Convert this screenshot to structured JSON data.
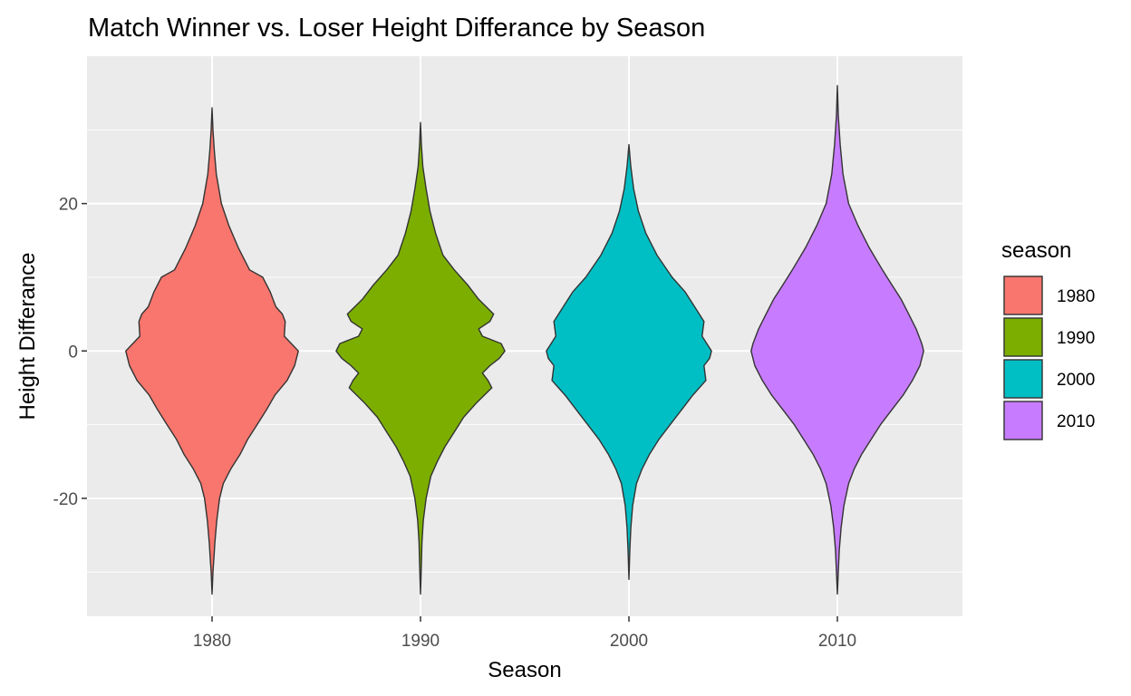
{
  "chart_data": {
    "type": "violin",
    "title": "Match Winner vs. Loser Height Differance by Season",
    "xlabel": "Season",
    "ylabel": "Height Differance",
    "categories": [
      "1980",
      "1990",
      "2000",
      "2010"
    ],
    "yticks": [
      "-20",
      "0",
      "20"
    ],
    "ylim": [
      -36,
      40
    ],
    "grid": true,
    "legend": {
      "title": "season",
      "position": "right",
      "entries": [
        "1980",
        "1990",
        "2000",
        "2010"
      ]
    },
    "colors": [
      "#F8766D",
      "#7CAE00",
      "#00BFC4",
      "#C77CFF"
    ],
    "series": [
      {
        "name": "1980",
        "min": -33,
        "max": 33,
        "profile": [
          [
            33,
            0.0
          ],
          [
            30,
            0.01
          ],
          [
            27,
            0.025
          ],
          [
            24,
            0.045
          ],
          [
            20,
            0.1
          ],
          [
            17,
            0.18
          ],
          [
            14,
            0.28
          ],
          [
            11,
            0.4
          ],
          [
            10,
            0.54
          ],
          [
            8,
            0.62
          ],
          [
            6,
            0.68
          ],
          [
            5,
            0.75
          ],
          [
            4,
            0.78
          ],
          [
            2,
            0.77
          ],
          [
            0,
            0.92
          ],
          [
            -2,
            0.88
          ],
          [
            -4,
            0.8
          ],
          [
            -6,
            0.67
          ],
          [
            -8,
            0.58
          ],
          [
            -10,
            0.48
          ],
          [
            -12,
            0.38
          ],
          [
            -14,
            0.3
          ],
          [
            -16,
            0.2
          ],
          [
            -18,
            0.12
          ],
          [
            -20,
            0.08
          ],
          [
            -23,
            0.05
          ],
          [
            -26,
            0.03
          ],
          [
            -28,
            0.02
          ],
          [
            -30,
            0.01
          ],
          [
            -33,
            0.0
          ]
        ]
      },
      {
        "name": "1990",
        "min": -33,
        "max": 31,
        "profile": [
          [
            31,
            0.0
          ],
          [
            28,
            0.01
          ],
          [
            25,
            0.025
          ],
          [
            22,
            0.06
          ],
          [
            19,
            0.1
          ],
          [
            16,
            0.16
          ],
          [
            13,
            0.24
          ],
          [
            11,
            0.36
          ],
          [
            9,
            0.5
          ],
          [
            7,
            0.62
          ],
          [
            5,
            0.78
          ],
          [
            4,
            0.74
          ],
          [
            3,
            0.62
          ],
          [
            2,
            0.66
          ],
          [
            1,
            0.86
          ],
          [
            0,
            0.9
          ],
          [
            -1,
            0.84
          ],
          [
            -2,
            0.74
          ],
          [
            -3,
            0.66
          ],
          [
            -4,
            0.72
          ],
          [
            -5,
            0.76
          ],
          [
            -7,
            0.6
          ],
          [
            -9,
            0.46
          ],
          [
            -11,
            0.36
          ],
          [
            -13,
            0.26
          ],
          [
            -15,
            0.18
          ],
          [
            -17,
            0.11
          ],
          [
            -20,
            0.06
          ],
          [
            -23,
            0.03
          ],
          [
            -26,
            0.015
          ],
          [
            -29,
            0.01
          ],
          [
            -33,
            0.0
          ]
        ]
      },
      {
        "name": "2000",
        "min": -31,
        "max": 28,
        "profile": [
          [
            28,
            0.0
          ],
          [
            25,
            0.02
          ],
          [
            22,
            0.05
          ],
          [
            19,
            0.1
          ],
          [
            16,
            0.18
          ],
          [
            13,
            0.3
          ],
          [
            10,
            0.46
          ],
          [
            8,
            0.6
          ],
          [
            6,
            0.7
          ],
          [
            4,
            0.8
          ],
          [
            2,
            0.78
          ],
          [
            0,
            0.88
          ],
          [
            -1,
            0.86
          ],
          [
            -2,
            0.8
          ],
          [
            -4,
            0.82
          ],
          [
            -6,
            0.68
          ],
          [
            -8,
            0.56
          ],
          [
            -10,
            0.44
          ],
          [
            -12,
            0.32
          ],
          [
            -14,
            0.22
          ],
          [
            -16,
            0.14
          ],
          [
            -18,
            0.08
          ],
          [
            -21,
            0.04
          ],
          [
            -24,
            0.02
          ],
          [
            -27,
            0.01
          ],
          [
            -31,
            0.0
          ]
        ]
      },
      {
        "name": "2010",
        "min": -33,
        "max": 36,
        "profile": [
          [
            36,
            0.0
          ],
          [
            32,
            0.01
          ],
          [
            28,
            0.03
          ],
          [
            24,
            0.06
          ],
          [
            20,
            0.12
          ],
          [
            17,
            0.22
          ],
          [
            14,
            0.34
          ],
          [
            11,
            0.48
          ],
          [
            9,
            0.58
          ],
          [
            7,
            0.68
          ],
          [
            5,
            0.76
          ],
          [
            3,
            0.84
          ],
          [
            1,
            0.9
          ],
          [
            0,
            0.92
          ],
          [
            -2,
            0.88
          ],
          [
            -4,
            0.8
          ],
          [
            -6,
            0.7
          ],
          [
            -8,
            0.58
          ],
          [
            -10,
            0.46
          ],
          [
            -12,
            0.36
          ],
          [
            -14,
            0.26
          ],
          [
            -16,
            0.18
          ],
          [
            -18,
            0.12
          ],
          [
            -21,
            0.07
          ],
          [
            -24,
            0.04
          ],
          [
            -27,
            0.02
          ],
          [
            -30,
            0.01
          ],
          [
            -33,
            0.0
          ]
        ]
      }
    ]
  }
}
